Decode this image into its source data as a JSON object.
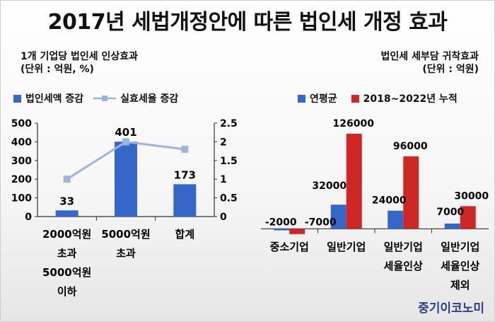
{
  "title": "2017년 세법개정안에 따른 법인세 개정 효과",
  "left": {
    "subtitle_line1": "1개 기업당 법인세 인상효과",
    "subtitle_line2": "(단위 : 억원, %)",
    "legend_bar": "법인세액 증감",
    "legend_line": "실효세율 증감"
  },
  "right": {
    "subtitle_line1": "법인세 세부담 귀착효과",
    "subtitle_line2": "(단위 : 억원)",
    "legend_1": "연평균",
    "legend_2": "2018~2022년 누적"
  },
  "brand": "중기이코노미",
  "colors": {
    "bar_blue": "#3467c8",
    "bar_red": "#cf2626",
    "line": "#9db4db"
  },
  "chart_data": [
    {
      "type": "bar",
      "categories": [
        [
          "2000억원",
          "초과",
          "5000억원",
          "이하"
        ],
        [
          "5000억원",
          "초과"
        ],
        [
          "합계"
        ]
      ],
      "series": [
        {
          "name": "법인세액 증감",
          "values": [
            33,
            401,
            173
          ],
          "labels": [
            "33",
            "401",
            "173"
          ]
        },
        {
          "name": "실효세율 증감",
          "type": "line",
          "axis": "right",
          "values": [
            1.0,
            2.0,
            1.8
          ]
        }
      ],
      "yticks": [
        "0",
        "100",
        "200",
        "300",
        "400",
        "500"
      ],
      "y2ticks": [
        "0",
        "0.5",
        "1",
        "1.5",
        "2",
        "2.5"
      ],
      "ylim": [
        0,
        500
      ],
      "y2lim": [
        0,
        2.5
      ]
    },
    {
      "type": "bar",
      "categories": [
        [
          "중소기업"
        ],
        [
          "일반기업"
        ],
        [
          "일반기업",
          "세율인상"
        ],
        [
          "일반기업",
          "세율인상",
          "제외"
        ]
      ],
      "series": [
        {
          "name": "연평균",
          "values": [
            -2000,
            32000,
            24000,
            7000
          ],
          "labels": [
            "-2000",
            "32000",
            "24000",
            "7000"
          ]
        },
        {
          "name": "2018~2022년 누적",
          "values": [
            -7000,
            126000,
            96000,
            30000
          ],
          "labels": [
            "-7000",
            "126000",
            "96000",
            "30000"
          ]
        }
      ],
      "ylim": [
        -10000,
        140000
      ]
    }
  ]
}
